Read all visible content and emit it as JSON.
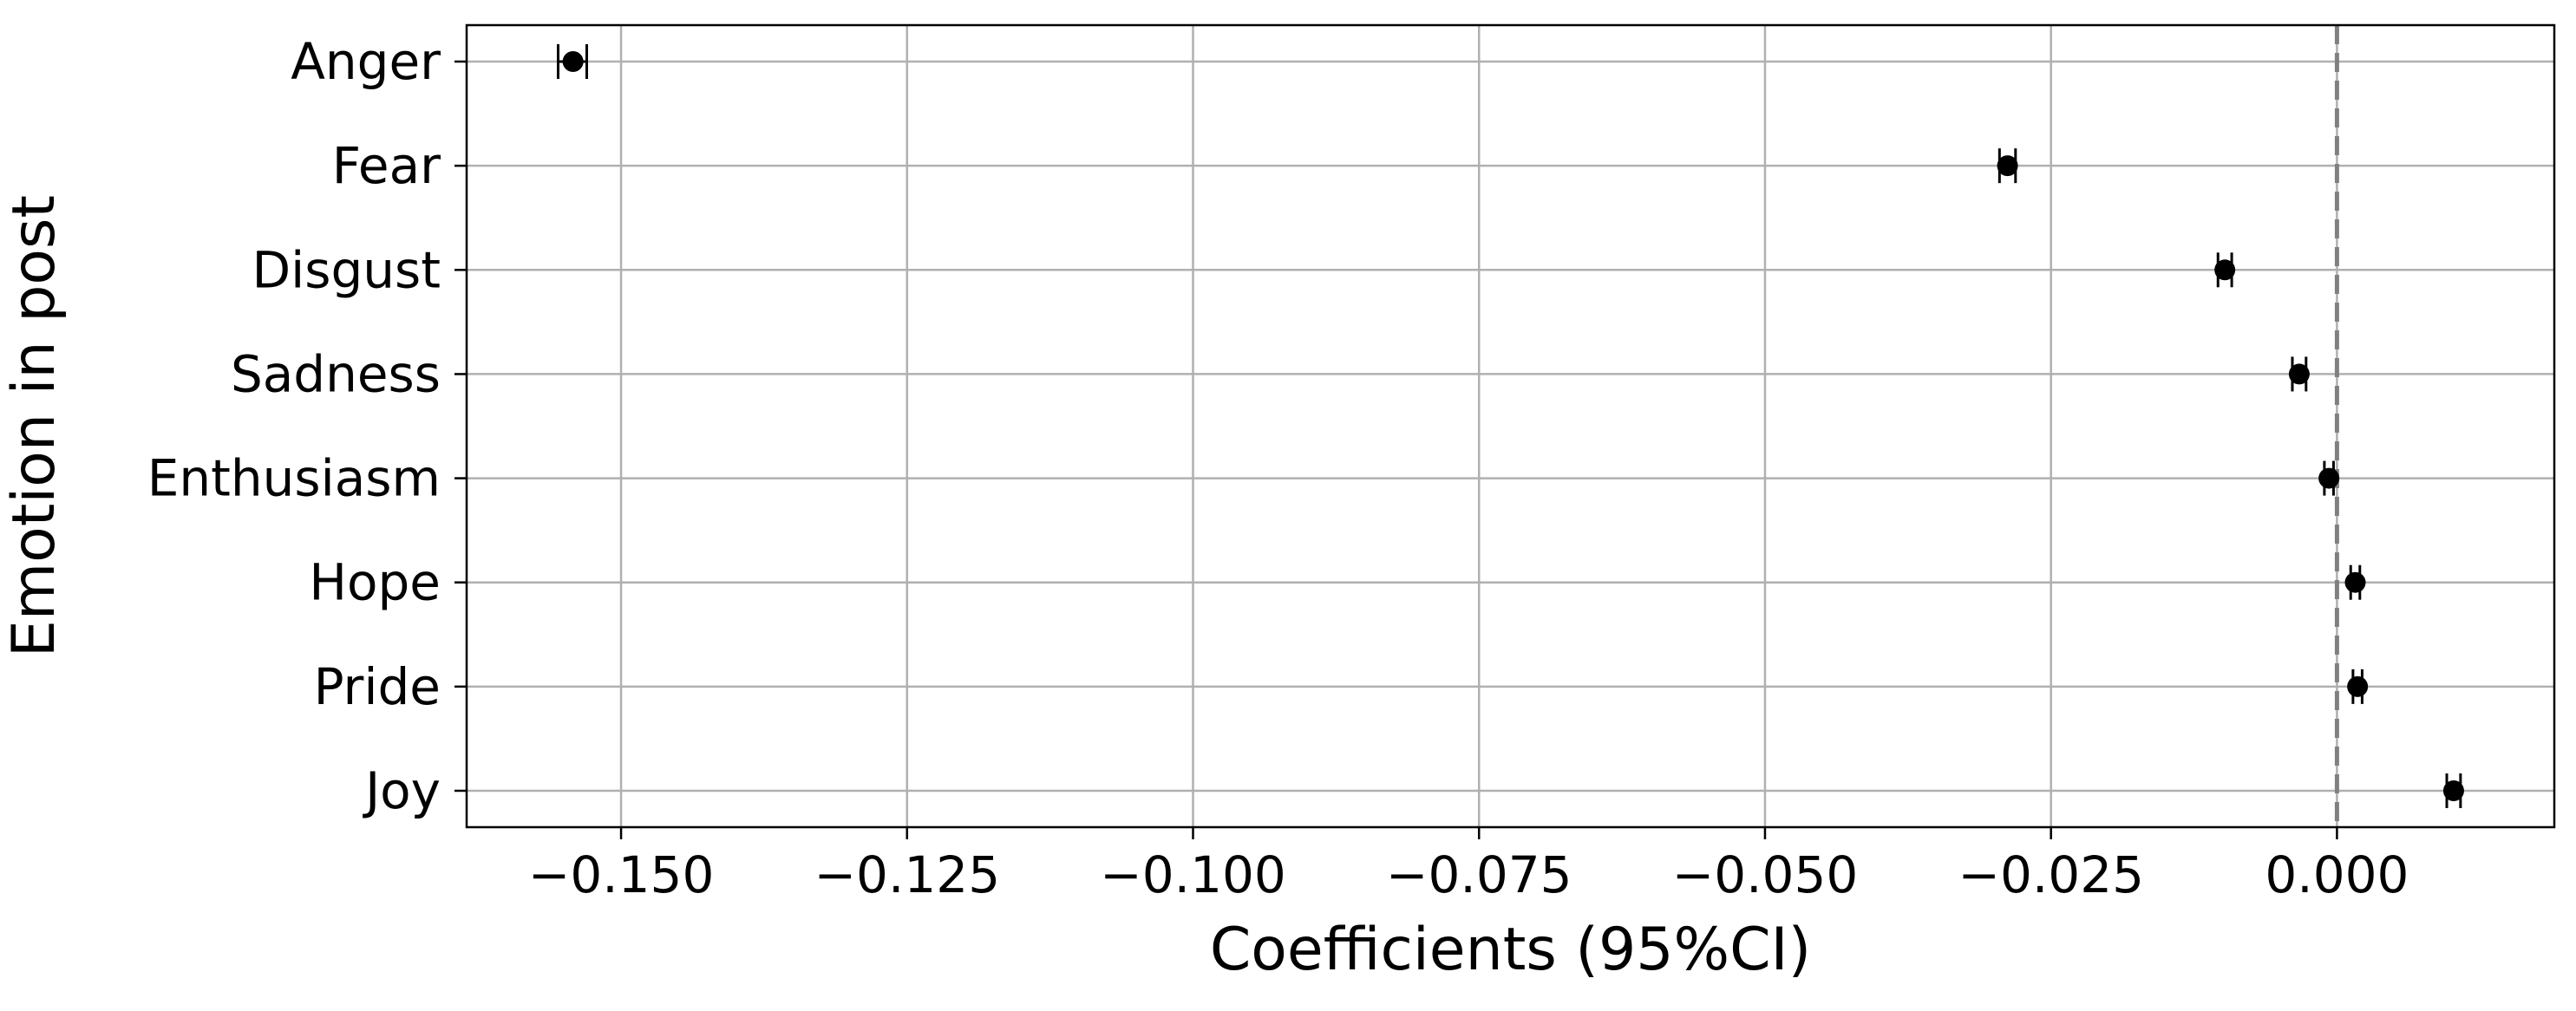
{
  "chart_data": {
    "type": "scatter",
    "title": "",
    "xlabel": "Coefficients (95%CI)",
    "ylabel": "Emotion in post",
    "xlim": [
      -0.1635,
      0.019
    ],
    "xticks": [
      -0.15,
      -0.125,
      -0.1,
      -0.075,
      -0.05,
      -0.025,
      0.0
    ],
    "xtick_labels": [
      "−0.150",
      "−0.125",
      "−0.100",
      "−0.075",
      "−0.050",
      "−0.025",
      "0.000"
    ],
    "grid": true,
    "reference_line": {
      "x": 0.0,
      "style": "dashed",
      "color": "#808080"
    },
    "categories": [
      "Anger",
      "Fear",
      "Disgust",
      "Sadness",
      "Enthusiasm",
      "Hope",
      "Pride",
      "Joy"
    ],
    "points": [
      {
        "label": "Anger",
        "coef": -0.1542,
        "ci": [
          -0.1555,
          -0.153
        ]
      },
      {
        "label": "Fear",
        "coef": -0.0288,
        "ci": [
          -0.0295,
          -0.0281
        ]
      },
      {
        "label": "Disgust",
        "coef": -0.0098,
        "ci": [
          -0.0104,
          -0.0092
        ]
      },
      {
        "label": "Sadness",
        "coef": -0.0033,
        "ci": [
          -0.0039,
          -0.0027
        ]
      },
      {
        "label": "Enthusiasm",
        "coef": -0.0007,
        "ci": [
          -0.0011,
          -0.0003
        ]
      },
      {
        "label": "Hope",
        "coef": 0.0016,
        "ci": [
          0.0012,
          0.002
        ]
      },
      {
        "label": "Pride",
        "coef": 0.0018,
        "ci": [
          0.0014,
          0.0022
        ]
      },
      {
        "label": "Joy",
        "coef": 0.0102,
        "ci": [
          0.0096,
          0.0108
        ]
      }
    ],
    "colors": {
      "point": "#000000",
      "grid": "#b0b0b0",
      "frame": "#000000"
    }
  }
}
